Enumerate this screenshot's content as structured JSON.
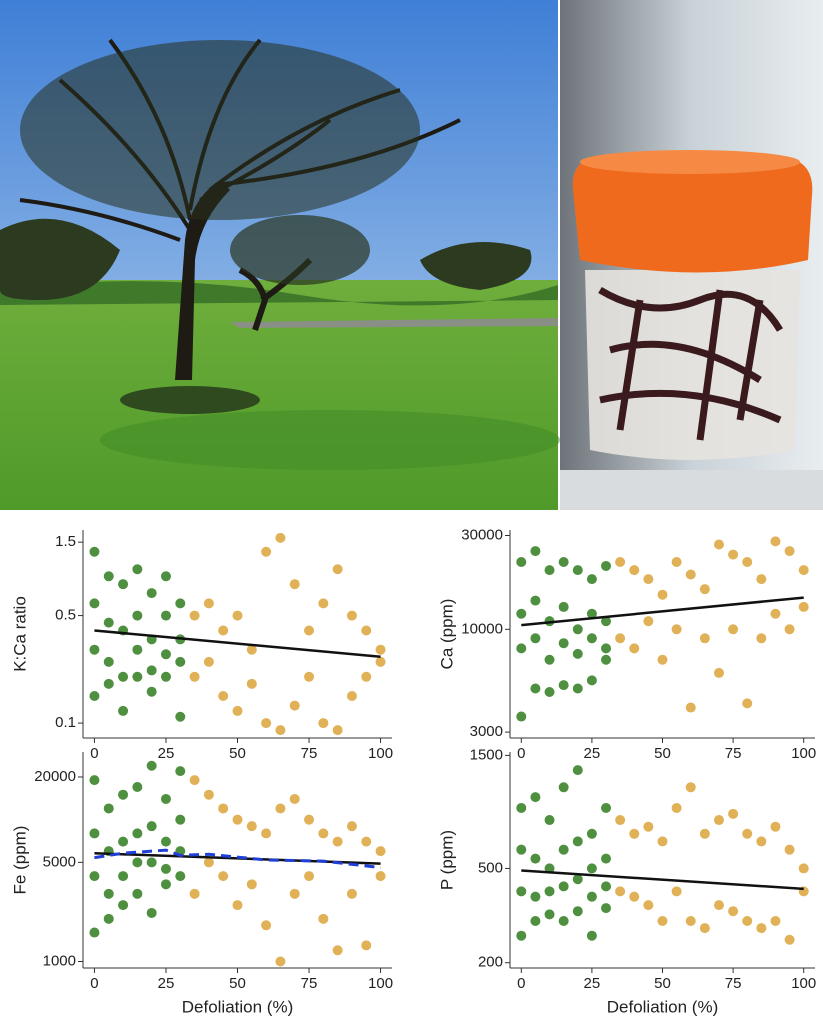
{
  "chart_data": [
    {
      "type": "scatter",
      "ylabel": "K:Ca ratio",
      "log_y": true,
      "xlim": [
        -4,
        104
      ],
      "xticks": [
        0,
        25,
        50,
        75,
        100
      ],
      "ylim": [
        0.08,
        1.8
      ],
      "yticks": [
        0.1,
        0.5,
        1.5
      ],
      "series": [
        {
          "style": "points",
          "color": "#2f7d1e",
          "x": [
            0,
            0,
            0,
            0,
            5,
            5,
            5,
            5,
            10,
            10,
            10,
            10,
            15,
            15,
            15,
            15,
            20,
            20,
            20,
            20,
            25,
            25,
            25,
            25,
            30,
            30,
            30,
            30
          ],
          "values": [
            1.3,
            0.6,
            0.3,
            0.15,
            0.9,
            0.45,
            0.25,
            0.18,
            0.8,
            0.4,
            0.2,
            0.12,
            1.0,
            0.5,
            0.3,
            0.2,
            0.7,
            0.35,
            0.22,
            0.16,
            0.9,
            0.5,
            0.28,
            0.2,
            0.6,
            0.35,
            0.25,
            0.11
          ]
        },
        {
          "style": "points",
          "color": "#dba33a",
          "x": [
            35,
            35,
            40,
            40,
            45,
            45,
            50,
            50,
            55,
            55,
            60,
            60,
            65,
            65,
            70,
            70,
            75,
            75,
            80,
            80,
            85,
            85,
            90,
            90,
            95,
            95,
            100,
            100
          ],
          "values": [
            0.5,
            0.2,
            0.6,
            0.25,
            0.4,
            0.15,
            0.5,
            0.12,
            0.3,
            0.18,
            1.3,
            0.1,
            1.6,
            0.09,
            0.8,
            0.13,
            0.4,
            0.2,
            0.6,
            0.1,
            1.0,
            0.09,
            0.5,
            0.15,
            0.4,
            0.2,
            0.25,
            0.3
          ]
        },
        {
          "style": "line",
          "color": "#111111",
          "x": [
            0,
            100
          ],
          "values": [
            0.4,
            0.27
          ]
        }
      ]
    },
    {
      "type": "scatter",
      "ylabel": "Ca (ppm)",
      "log_y": true,
      "xlim": [
        -4,
        104
      ],
      "xticks": [
        0,
        25,
        50,
        75,
        100
      ],
      "ylim": [
        2800,
        32000
      ],
      "yticks": [
        3000,
        10000,
        30000
      ],
      "series": [
        {
          "style": "points",
          "color": "#2f7d1e",
          "x": [
            0,
            0,
            0,
            0,
            5,
            5,
            5,
            5,
            10,
            10,
            10,
            10,
            15,
            15,
            15,
            15,
            20,
            20,
            20,
            20,
            25,
            25,
            25,
            25,
            30,
            30,
            30,
            30
          ],
          "values": [
            22000,
            12000,
            8000,
            3600,
            25000,
            14000,
            9000,
            5000,
            20000,
            11000,
            7000,
            4800,
            22000,
            13000,
            8500,
            5200,
            20000,
            10000,
            7500,
            5000,
            18000,
            12000,
            9000,
            5500,
            21000,
            11000,
            8000,
            7000
          ]
        },
        {
          "style": "points",
          "color": "#dba33a",
          "x": [
            35,
            35,
            40,
            40,
            45,
            45,
            50,
            50,
            55,
            55,
            60,
            60,
            65,
            65,
            70,
            70,
            75,
            75,
            80,
            80,
            85,
            85,
            90,
            90,
            95,
            95,
            100,
            100
          ],
          "values": [
            22000,
            9000,
            20000,
            8000,
            18000,
            11000,
            15000,
            7000,
            22000,
            10000,
            19000,
            4000,
            16000,
            9000,
            27000,
            6000,
            24000,
            10000,
            22000,
            4200,
            18000,
            9000,
            28000,
            12000,
            25000,
            10000,
            20000,
            13000
          ]
        },
        {
          "style": "line",
          "color": "#111111",
          "x": [
            0,
            100
          ],
          "values": [
            10500,
            14500
          ]
        }
      ]
    },
    {
      "type": "scatter",
      "ylabel": "Fe (ppm)",
      "xlabel": "Defoliation (%)",
      "log_y": true,
      "xlim": [
        -4,
        104
      ],
      "xticks": [
        0,
        25,
        50,
        75,
        100
      ],
      "ylim": [
        900,
        30000
      ],
      "yticks": [
        1000,
        5000,
        20000
      ],
      "series": [
        {
          "style": "points",
          "color": "#2f7d1e",
          "x": [
            0,
            0,
            0,
            0,
            5,
            5,
            5,
            5,
            10,
            10,
            10,
            10,
            15,
            15,
            15,
            15,
            20,
            20,
            20,
            20,
            25,
            25,
            25,
            25,
            30,
            30,
            30,
            30
          ],
          "values": [
            19000,
            8000,
            4000,
            1600,
            12000,
            6000,
            3000,
            2000,
            15000,
            7000,
            4000,
            2500,
            17000,
            8000,
            5000,
            3000,
            24000,
            9000,
            5000,
            2200,
            14000,
            7000,
            4500,
            3500,
            22000,
            10000,
            6000,
            4000
          ]
        },
        {
          "style": "points",
          "color": "#dba33a",
          "x": [
            35,
            35,
            40,
            40,
            45,
            45,
            50,
            50,
            55,
            55,
            60,
            60,
            65,
            65,
            70,
            70,
            75,
            75,
            80,
            80,
            85,
            85,
            90,
            90,
            95,
            95,
            100,
            100
          ],
          "values": [
            19000,
            3000,
            15000,
            5000,
            12000,
            4000,
            10000,
            2500,
            9000,
            3500,
            8000,
            1800,
            12000,
            1000,
            14000,
            3000,
            10000,
            4000,
            8000,
            2000,
            7000,
            1200,
            9000,
            3000,
            7000,
            1300,
            6000,
            4000
          ]
        },
        {
          "style": "line",
          "color": "#111111",
          "x": [
            0,
            100
          ],
          "values": [
            5800,
            4900
          ]
        },
        {
          "style": "dashed",
          "color": "#1f3fd6",
          "x": [
            0,
            10,
            20,
            25,
            30,
            40,
            60,
            80,
            100
          ],
          "values": [
            5400,
            5800,
            6000,
            6100,
            5600,
            5700,
            5200,
            5100,
            4600
          ]
        }
      ]
    },
    {
      "type": "scatter",
      "ylabel": "P (ppm)",
      "xlabel": "Defoliation (%)",
      "log_y": true,
      "xlim": [
        -4,
        104
      ],
      "xticks": [
        0,
        25,
        50,
        75,
        100
      ],
      "ylim": [
        190,
        1550
      ],
      "yticks": [
        200,
        500,
        1500
      ],
      "series": [
        {
          "style": "points",
          "color": "#2f7d1e",
          "x": [
            0,
            0,
            0,
            0,
            5,
            5,
            5,
            5,
            10,
            10,
            10,
            10,
            15,
            15,
            15,
            15,
            20,
            20,
            20,
            20,
            25,
            25,
            25,
            25,
            30,
            30,
            30,
            30
          ],
          "values": [
            900,
            600,
            400,
            260,
            1000,
            550,
            380,
            300,
            800,
            500,
            400,
            320,
            1100,
            600,
            420,
            300,
            1300,
            650,
            450,
            330,
            700,
            500,
            380,
            260,
            900,
            550,
            420,
            340
          ]
        },
        {
          "style": "points",
          "color": "#dba33a",
          "x": [
            35,
            35,
            40,
            40,
            45,
            45,
            50,
            50,
            55,
            55,
            60,
            60,
            65,
            65,
            70,
            70,
            75,
            75,
            80,
            80,
            85,
            85,
            90,
            90,
            95,
            95,
            100,
            100
          ],
          "values": [
            800,
            400,
            700,
            380,
            750,
            350,
            650,
            300,
            900,
            400,
            1100,
            300,
            700,
            280,
            800,
            350,
            850,
            330,
            700,
            300,
            650,
            280,
            750,
            300,
            600,
            250,
            500,
            400
          ]
        },
        {
          "style": "line",
          "color": "#111111",
          "x": [
            0,
            100
          ],
          "values": [
            490,
            410
          ]
        }
      ]
    }
  ]
}
